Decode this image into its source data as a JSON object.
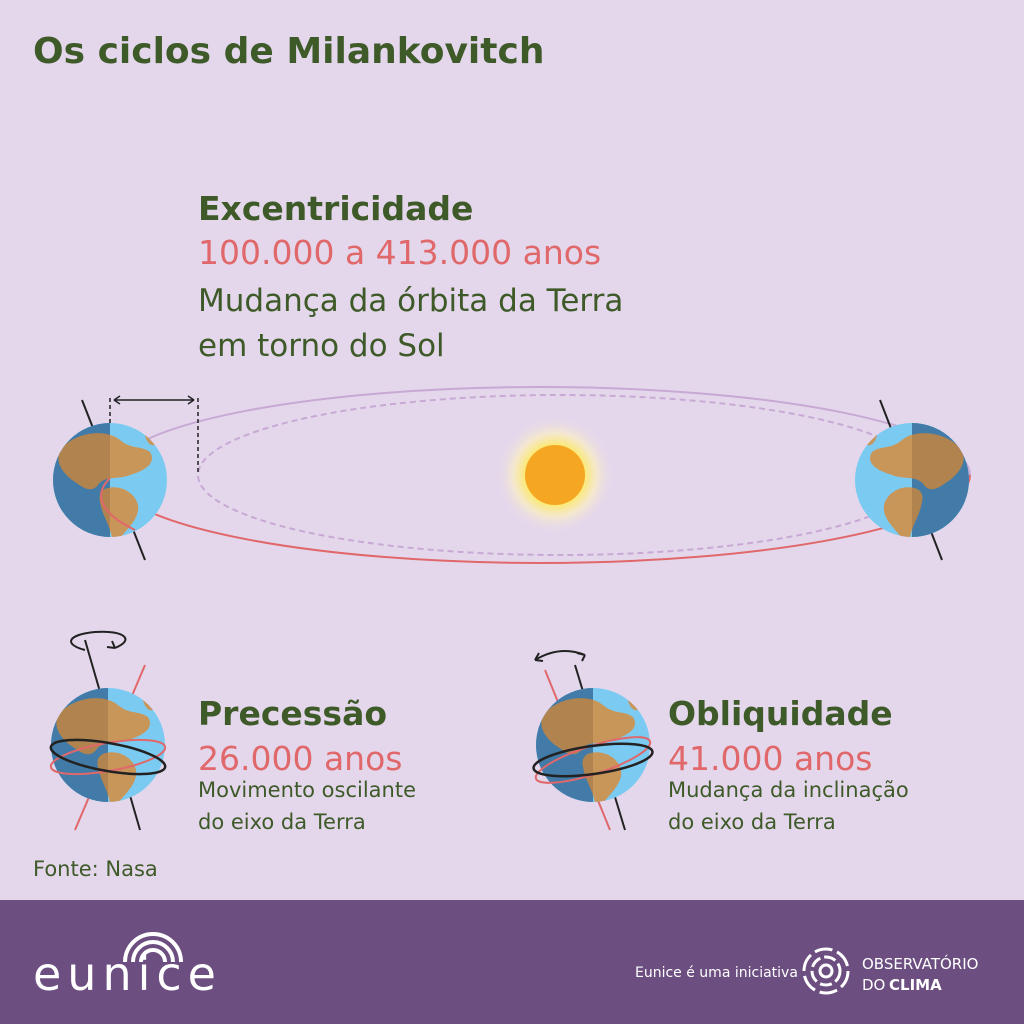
{
  "header": {
    "title": "Os ciclos de Milankovitch"
  },
  "eccentricity": {
    "heading": "Excentricidade",
    "period": "100.000  a 413.000 anos",
    "description": [
      "Mudança da órbita da Terra",
      "em torno do Sol"
    ]
  },
  "precession": {
    "heading": "Precessão",
    "period": "26.000 anos",
    "description": [
      "Movimento oscilante",
      "do eixo da Terra"
    ]
  },
  "obliquity": {
    "heading": "Obliquidade",
    "period": "41.000 anos",
    "description": [
      "Mudança da inclinação",
      "do eixo da Terra"
    ]
  },
  "source": "Fonte: Nasa",
  "footer": {
    "brand": "eunice",
    "initiative": "Eunice é uma iniciativa",
    "partner": [
      "OBSERVATÓRIO",
      "DO",
      "CLIMA"
    ]
  }
}
